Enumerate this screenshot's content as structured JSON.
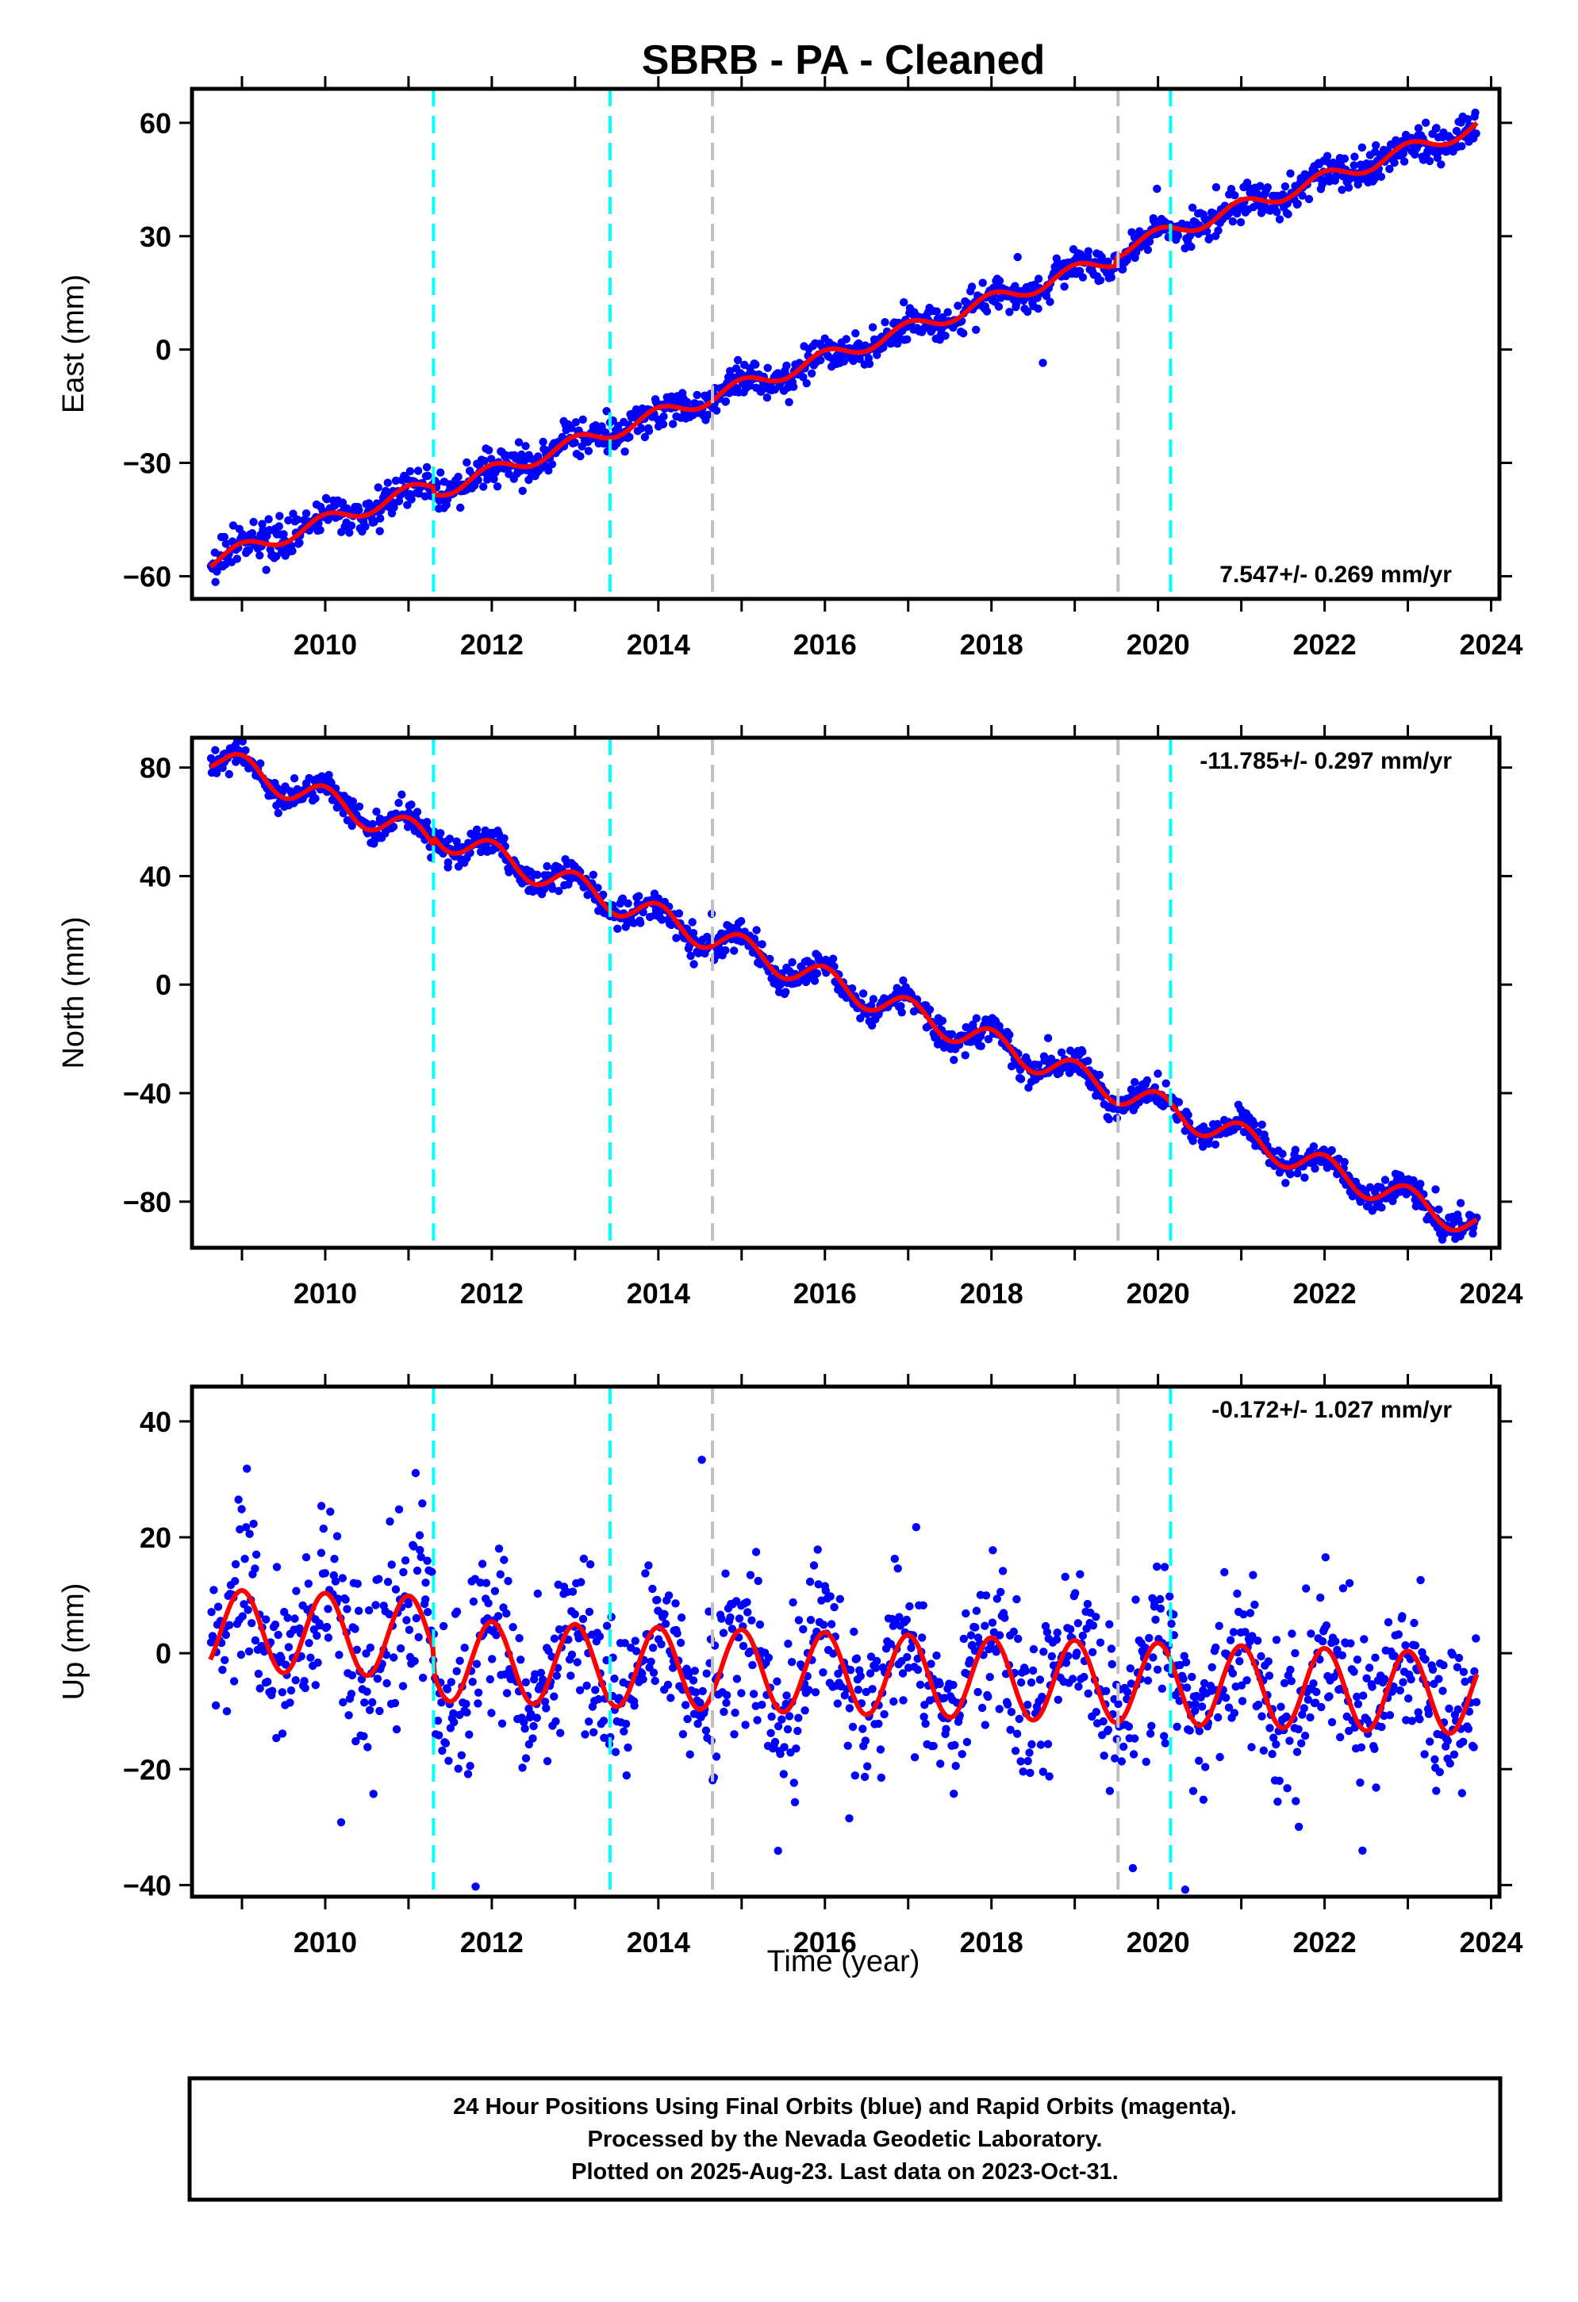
{
  "colors": {
    "data": "#0000ff",
    "model": "#ff0000",
    "equipment": "#00ffff",
    "other": "#c0c0c0",
    "frame": "#000000"
  },
  "page_title": "SBRB  - PA - Cleaned",
  "xlabel": "Time (year)",
  "footer": [
    "24 Hour Positions Using Final Orbits (blue) and Rapid Orbits (magenta).",
    "Processed by the Nevada Geodetic Laboratory.",
    "Plotted on 2025-Aug-23. Last data on 2023-Oct-31."
  ],
  "chart_data": [
    {
      "type": "scatter",
      "component": "east",
      "ylabel": "East (mm)",
      "xlim": [
        2008.4,
        2024.1
      ],
      "ylim": [
        -66,
        69
      ],
      "xticks": [
        2010,
        2012,
        2014,
        2016,
        2018,
        2020,
        2022,
        2024
      ],
      "yticks": [
        -60,
        -30,
        0,
        30,
        60
      ],
      "rate_label": "7.547+/- 0.269 mm/yr",
      "trend": {
        "x": [
          2008.62,
          2023.83
        ],
        "y": [
          -56,
          59
        ]
      },
      "seasonal_amplitude": 2.0,
      "scatter_sd": 2.3,
      "data_start": 2008.62,
      "data_end": 2023.83,
      "steps": [
        {
          "x": 2011.3,
          "dy": -2
        },
        {
          "x": 2019.5,
          "dy": 2
        }
      ],
      "equipment_changes": [
        2011.3,
        2013.42,
        2020.15
      ],
      "other_events": [
        2014.65,
        2019.52
      ]
    },
    {
      "type": "scatter",
      "component": "north",
      "ylabel": "North (mm)",
      "xlim": [
        2008.4,
        2024.1
      ],
      "ylim": [
        -97,
        91
      ],
      "xticks": [
        2010,
        2012,
        2014,
        2016,
        2018,
        2020,
        2022,
        2024
      ],
      "yticks": [
        -80,
        -40,
        0,
        40,
        80
      ],
      "rate_label": "-11.785+/- 0.297 mm/yr",
      "trend": {
        "x": [
          2008.62,
          2023.83
        ],
        "y": [
          84,
          -92
        ]
      },
      "seasonal_amplitude": 5.0,
      "scatter_sd": 2.6,
      "data_start": 2008.62,
      "data_end": 2023.83,
      "steps": [
        {
          "x": 2011.3,
          "dy": 3
        }
      ],
      "equipment_changes": [
        2011.3,
        2013.42,
        2020.15
      ],
      "other_events": [
        2014.65,
        2019.52
      ]
    },
    {
      "type": "scatter",
      "component": "up",
      "ylabel": "Up (mm)",
      "xlim": [
        2008.4,
        2024.1
      ],
      "ylim": [
        -42,
        46
      ],
      "xticks": [
        2010,
        2012,
        2014,
        2016,
        2018,
        2020,
        2022,
        2024
      ],
      "yticks": [
        -40,
        -20,
        0,
        20,
        40
      ],
      "rate_label": "-0.172+/- 1.027 mm/yr",
      "trend": {
        "x": [
          2008.62,
          2023.83
        ],
        "y": [
          4,
          -3
        ]
      },
      "seasonal_amplitude": 7.0,
      "scatter_sd": 7.0,
      "data_start": 2008.62,
      "data_end": 2023.83,
      "steps": [
        {
          "x": 2011.3,
          "dy": -4
        }
      ],
      "equipment_changes": [
        2011.3,
        2013.42,
        2020.15
      ],
      "other_events": [
        2014.65,
        2019.52
      ]
    }
  ]
}
